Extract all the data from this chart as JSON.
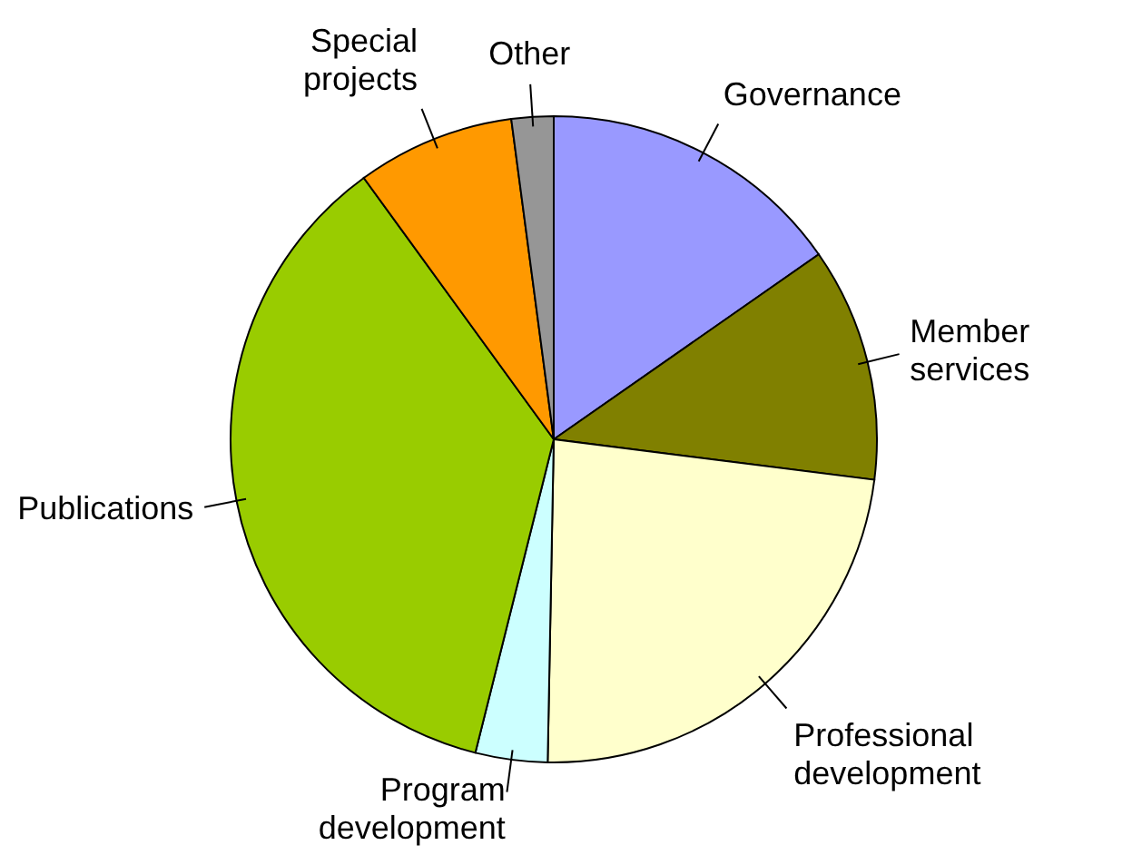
{
  "chart_data": {
    "type": "pie",
    "categories": [
      "Governance",
      "Member services",
      "Professional development",
      "Program development",
      "Publications",
      "Special projects",
      "Other"
    ],
    "values": [
      15.3,
      11.7,
      23.3,
      3.6,
      36.1,
      7.9,
      2.1
    ],
    "colors": [
      "#9999ff",
      "#808000",
      "#ffffcc",
      "#ccffff",
      "#99cc00",
      "#ff9900",
      "#969696"
    ]
  }
}
